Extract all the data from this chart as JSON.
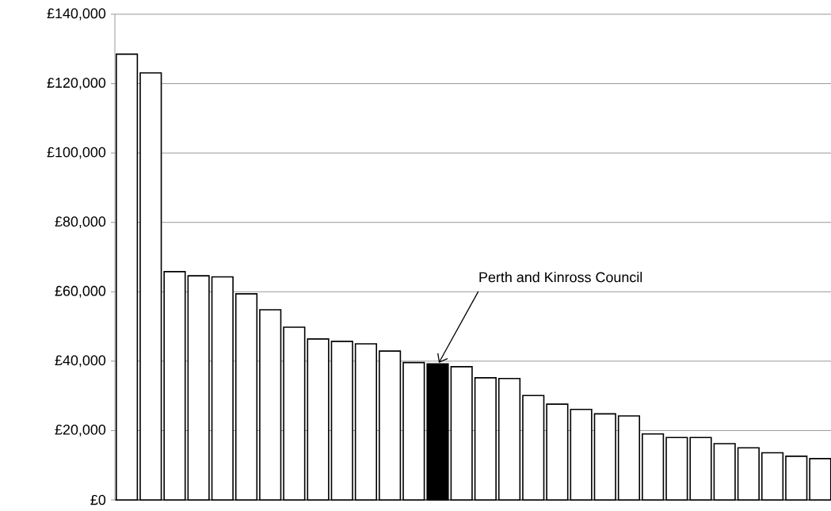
{
  "chart_data": {
    "type": "bar",
    "categories": [
      null,
      null,
      null,
      null,
      null,
      null,
      null,
      null,
      null,
      null,
      null,
      null,
      null,
      null,
      null,
      null,
      null,
      null,
      null,
      null,
      null,
      null,
      null,
      null,
      null,
      null,
      null,
      null,
      null,
      null
    ],
    "values": [
      128500,
      123100,
      65800,
      64600,
      64300,
      59400,
      54800,
      49800,
      46400,
      45700,
      45000,
      42900,
      39600,
      39200,
      38400,
      35200,
      35000,
      30100,
      27600,
      26100,
      24800,
      24200,
      19000,
      18000,
      18000,
      16200,
      15000,
      13600,
      12600,
      11900
    ],
    "colors": [
      "#ffffff",
      "#ffffff",
      "#ffffff",
      "#ffffff",
      "#ffffff",
      "#ffffff",
      "#ffffff",
      "#ffffff",
      "#ffffff",
      "#ffffff",
      "#ffffff",
      "#ffffff",
      "#ffffff",
      "#000000",
      "#ffffff",
      "#ffffff",
      "#ffffff",
      "#ffffff",
      "#ffffff",
      "#ffffff",
      "#ffffff",
      "#ffffff",
      "#ffffff",
      "#ffffff",
      "#ffffff",
      "#ffffff",
      "#ffffff",
      "#ffffff",
      "#ffffff",
      "#ffffff"
    ],
    "ylim": [
      0,
      140000
    ],
    "yticks": [
      {
        "value": 0,
        "label": "£0"
      },
      {
        "value": 20000,
        "label": "£20,000"
      },
      {
        "value": 40000,
        "label": "£40,000"
      },
      {
        "value": 60000,
        "label": "£60,000"
      },
      {
        "value": 80000,
        "label": "£80,000"
      },
      {
        "value": 100000,
        "label": "£100,000"
      },
      {
        "value": 120000,
        "label": "£120,000"
      },
      {
        "value": 140000,
        "label": "£140,000"
      }
    ],
    "grid": "y",
    "annotations": [
      "Perth and Kinross Council"
    ]
  }
}
